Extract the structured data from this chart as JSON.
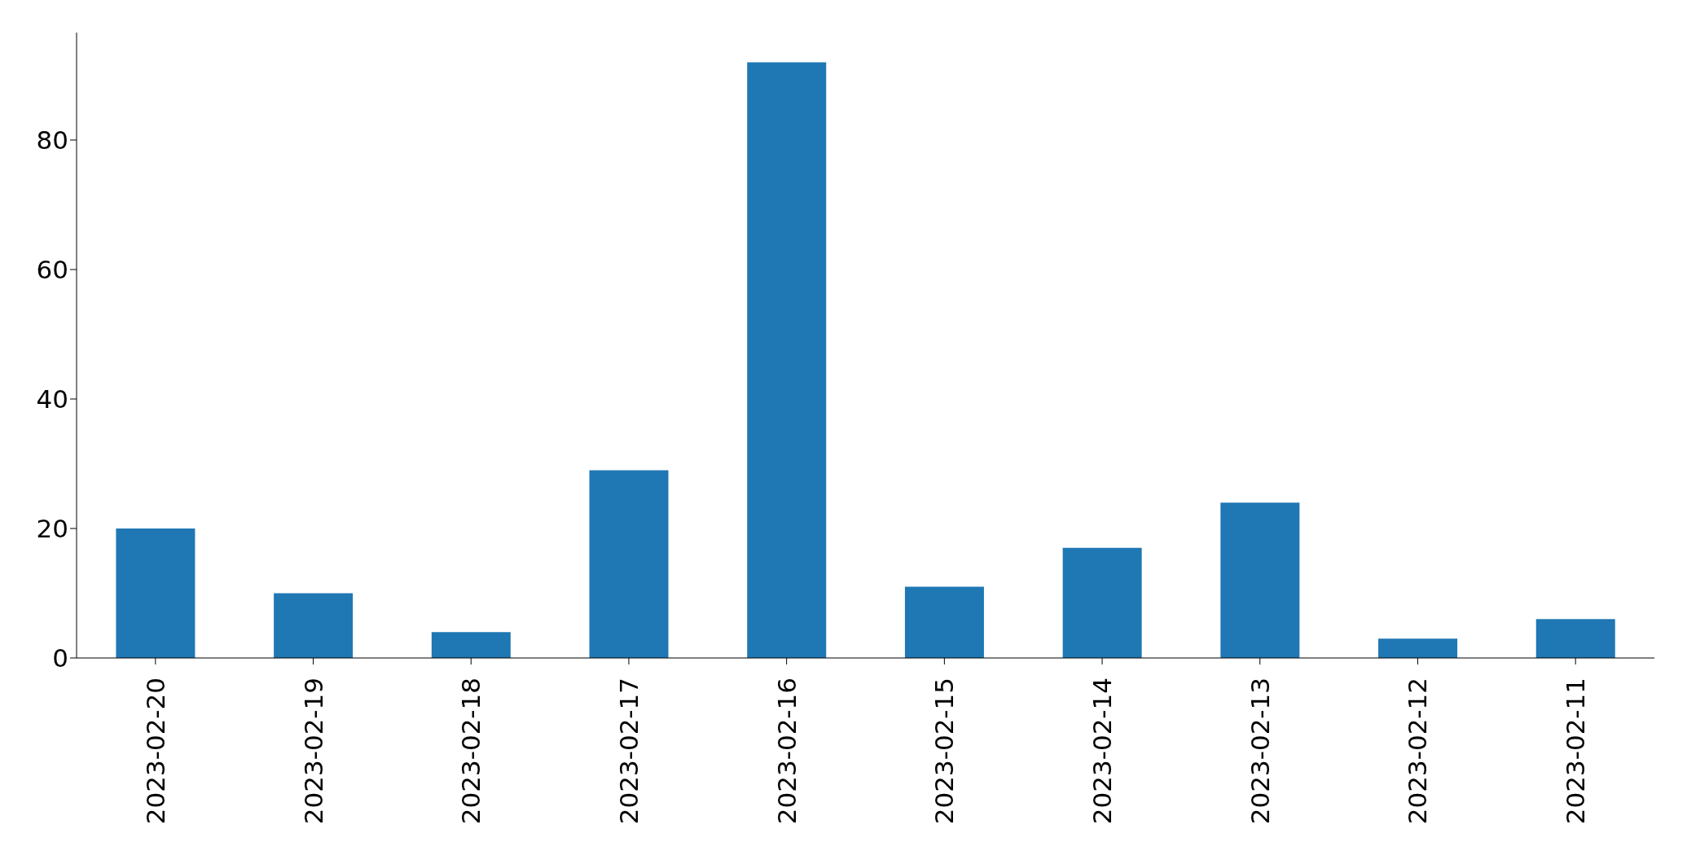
{
  "chart_data": {
    "type": "bar",
    "categories": [
      "2023-02-20",
      "2023-02-19",
      "2023-02-18",
      "2023-02-17",
      "2023-02-16",
      "2023-02-15",
      "2023-02-14",
      "2023-02-13",
      "2023-02-12",
      "2023-02-11"
    ],
    "values": [
      20,
      10,
      4,
      29,
      92,
      11,
      17,
      24,
      3,
      6
    ],
    "color": "#1f77b4",
    "ylim": [
      0,
      96.6
    ],
    "yticks": [
      0,
      20,
      40,
      60,
      80
    ],
    "grid": false
  }
}
